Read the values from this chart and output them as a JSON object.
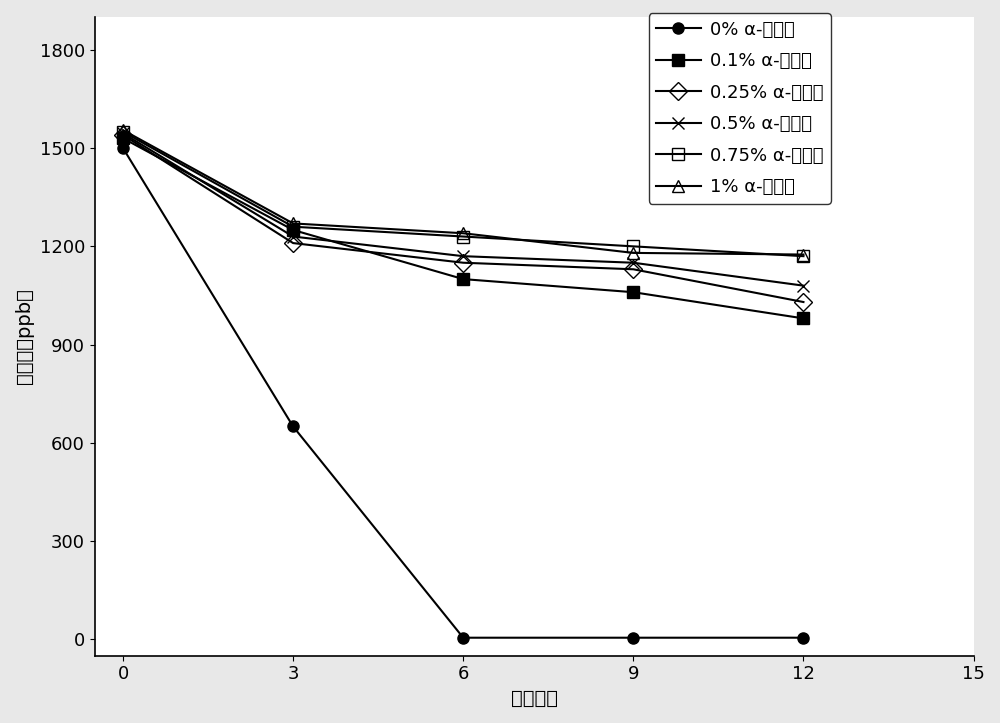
{
  "x": [
    0,
    3,
    6,
    9,
    12
  ],
  "series": [
    {
      "label": "0% α-环糖精",
      "y": [
        1500,
        650,
        5,
        5,
        5
      ],
      "marker": "o",
      "fillstyle": "full",
      "color": "#000000",
      "markersize": 8
    },
    {
      "label": "0.1% α-环糖精",
      "y": [
        1530,
        1250,
        1100,
        1060,
        980
      ],
      "marker": "s",
      "fillstyle": "full",
      "color": "#000000",
      "markersize": 8
    },
    {
      "label": "0.25% α-环糖精",
      "y": [
        1540,
        1210,
        1150,
        1130,
        1030
      ],
      "marker": "D",
      "fillstyle": "none",
      "color": "#000000",
      "markersize": 9
    },
    {
      "label": "0.5% α-环糖精",
      "y": [
        1545,
        1230,
        1170,
        1150,
        1080
      ],
      "marker": "x",
      "fillstyle": "full",
      "color": "#000000",
      "markersize": 9
    },
    {
      "label": "0.75% α-环糖精",
      "y": [
        1550,
        1260,
        1230,
        1200,
        1170
      ],
      "marker": "s",
      "fillstyle": "none",
      "color": "#000000",
      "markersize": 9
    },
    {
      "label": "1% α-环糖精",
      "y": [
        1555,
        1270,
        1240,
        1180,
        1175
      ],
      "marker": "^",
      "fillstyle": "none",
      "color": "#000000",
      "markersize": 9
    }
  ],
  "xlabel": "时间：月",
  "ylabel": "氢含量（ppb）",
  "xlim": [
    -0.5,
    15
  ],
  "ylim": [
    -50,
    1900
  ],
  "xticks": [
    0,
    3,
    6,
    9,
    12,
    15
  ],
  "yticks": [
    0,
    300,
    600,
    900,
    1200,
    1500,
    1800
  ],
  "legend_fontsize": 13,
  "axis_fontsize": 14,
  "tick_fontsize": 13,
  "linewidth": 1.5,
  "background_color": "#ffffff",
  "figure_bg": "#f0f0f0"
}
